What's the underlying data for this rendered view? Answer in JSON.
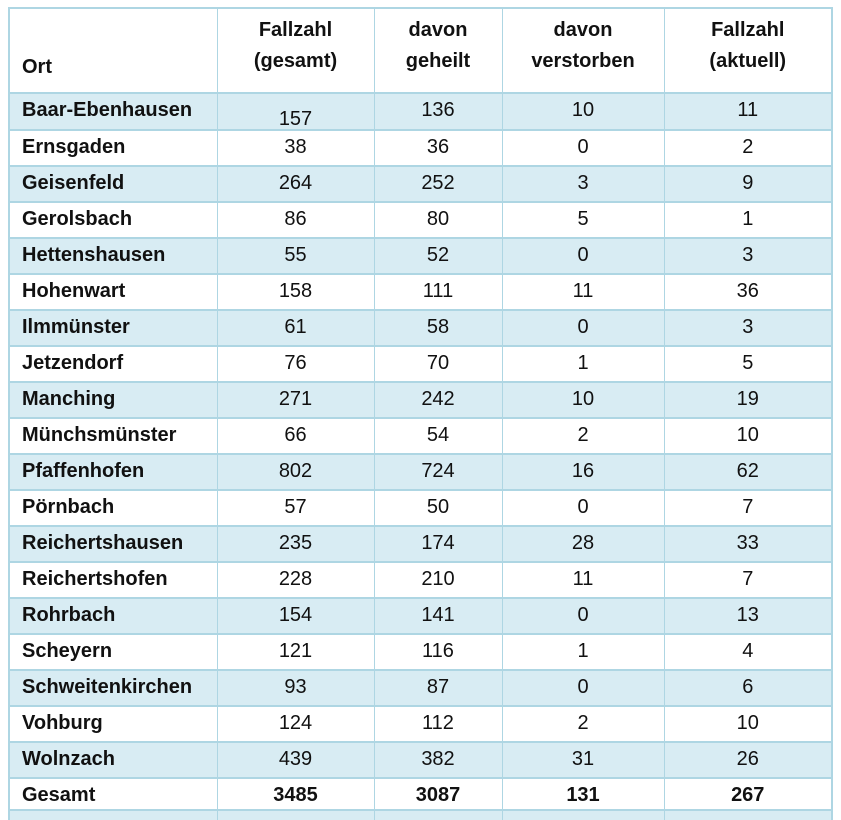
{
  "chart_data": {
    "type": "table",
    "title": "",
    "columns": [
      "Ort",
      "Fallzahl (gesamt)",
      "davon geheilt",
      "davon verstorben",
      "Fallzahl (aktuell)"
    ],
    "header_lines": {
      "ort": "Ort",
      "cols": [
        [
          "Fallzahl",
          "(gesamt)"
        ],
        [
          "davon",
          "geheilt"
        ],
        [
          "davon",
          "verstorben"
        ],
        [
          "Fallzahl",
          "(aktuell)"
        ]
      ]
    },
    "rows": [
      {
        "ort": "Baar-Ebenhausen",
        "gesamt": 157,
        "geheilt": 136,
        "verstorben": 10,
        "aktuell": 11
      },
      {
        "ort": "Ernsgaden",
        "gesamt": 38,
        "geheilt": 36,
        "verstorben": 0,
        "aktuell": 2
      },
      {
        "ort": "Geisenfeld",
        "gesamt": 264,
        "geheilt": 252,
        "verstorben": 3,
        "aktuell": 9
      },
      {
        "ort": "Gerolsbach",
        "gesamt": 86,
        "geheilt": 80,
        "verstorben": 5,
        "aktuell": 1
      },
      {
        "ort": "Hettenshausen",
        "gesamt": 55,
        "geheilt": 52,
        "verstorben": 0,
        "aktuell": 3
      },
      {
        "ort": "Hohenwart",
        "gesamt": 158,
        "geheilt": 111,
        "verstorben": 11,
        "aktuell": 36
      },
      {
        "ort": "Ilmmünster",
        "gesamt": 61,
        "geheilt": 58,
        "verstorben": 0,
        "aktuell": 3
      },
      {
        "ort": "Jetzendorf",
        "gesamt": 76,
        "geheilt": 70,
        "verstorben": 1,
        "aktuell": 5
      },
      {
        "ort": "Manching",
        "gesamt": 271,
        "geheilt": 242,
        "verstorben": 10,
        "aktuell": 19
      },
      {
        "ort": "Münchsmünster",
        "gesamt": 66,
        "geheilt": 54,
        "verstorben": 2,
        "aktuell": 10
      },
      {
        "ort": "Pfaffenhofen",
        "gesamt": 802,
        "geheilt": 724,
        "verstorben": 16,
        "aktuell": 62
      },
      {
        "ort": "Pörnbach",
        "gesamt": 57,
        "geheilt": 50,
        "verstorben": 0,
        "aktuell": 7
      },
      {
        "ort": "Reichertshausen",
        "gesamt": 235,
        "geheilt": 174,
        "verstorben": 28,
        "aktuell": 33
      },
      {
        "ort": "Reichertshofen",
        "gesamt": 228,
        "geheilt": 210,
        "verstorben": 11,
        "aktuell": 7
      },
      {
        "ort": "Rohrbach",
        "gesamt": 154,
        "geheilt": 141,
        "verstorben": 0,
        "aktuell": 13
      },
      {
        "ort": "Scheyern",
        "gesamt": 121,
        "geheilt": 116,
        "verstorben": 1,
        "aktuell": 4
      },
      {
        "ort": "Schweitenkirchen",
        "gesamt": 93,
        "geheilt": 87,
        "verstorben": 0,
        "aktuell": 6
      },
      {
        "ort": "Vohburg",
        "gesamt": 124,
        "geheilt": 112,
        "verstorben": 2,
        "aktuell": 10
      },
      {
        "ort": "Wolnzach",
        "gesamt": 439,
        "geheilt": 382,
        "verstorben": 31,
        "aktuell": 26
      }
    ],
    "total": {
      "ort": "Gesamt",
      "gesamt": 3485,
      "geheilt": 3087,
      "verstorben": 131,
      "aktuell": 267
    }
  },
  "colors": {
    "row_alt": "#d8ecf3",
    "border": "#aed6e3",
    "text": "#111111",
    "background": "#ffffff"
  }
}
